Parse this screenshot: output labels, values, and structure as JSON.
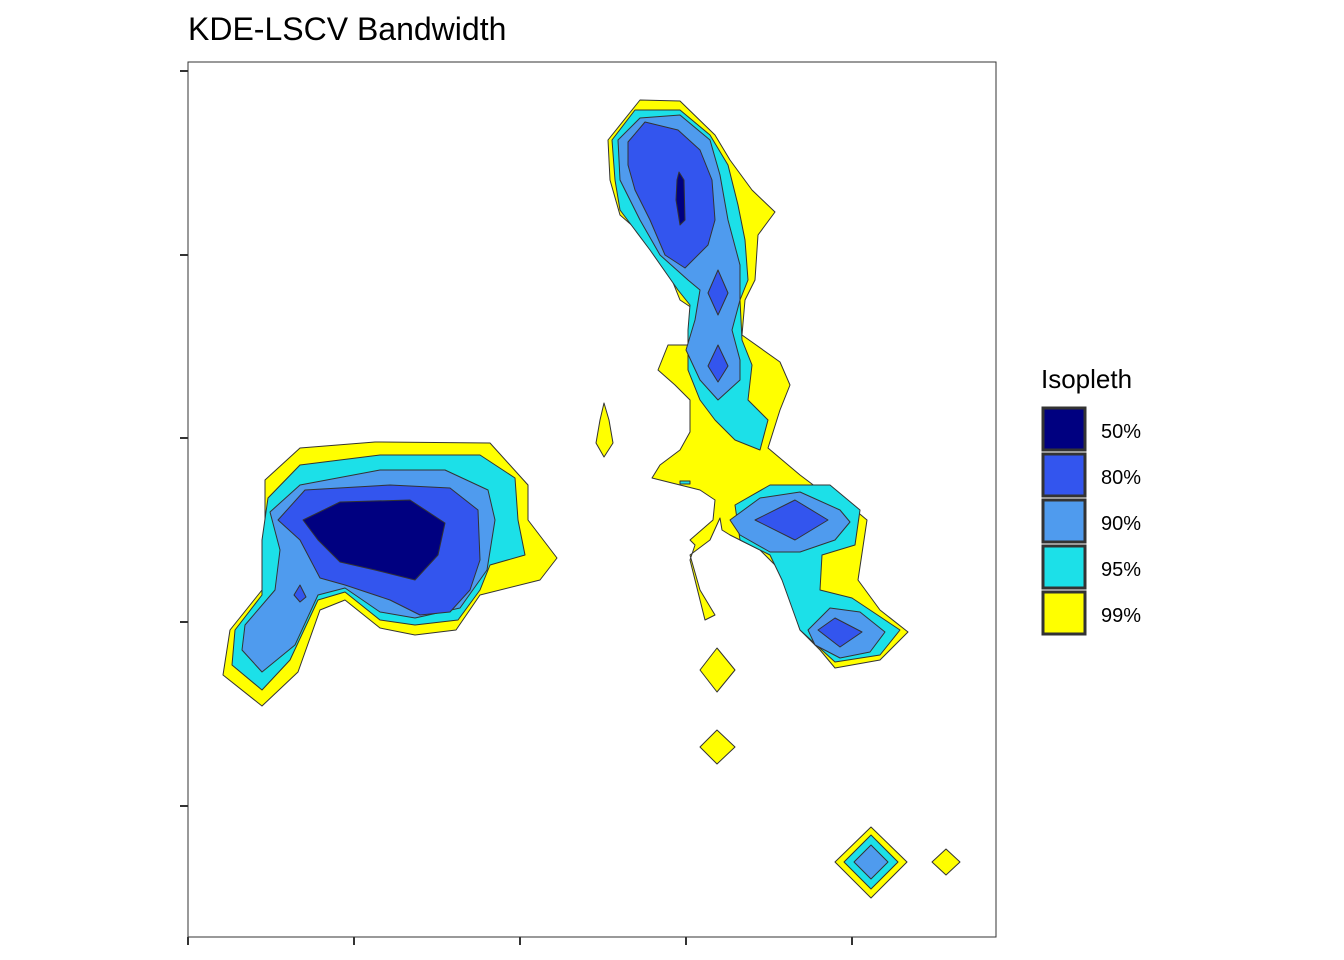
{
  "title": "KDE-LSCV Bandwidth",
  "colors": {
    "iso50": "#000080",
    "iso80": "#3355EE",
    "iso90": "#4F9BEE",
    "iso95": "#1CE0E8",
    "iso99": "#FFFF00"
  },
  "legend": {
    "title": "Isopleth",
    "items": [
      {
        "label": "50%",
        "color": "#000080"
      },
      {
        "label": "80%",
        "color": "#3355EE"
      },
      {
        "label": "90%",
        "color": "#4F9BEE"
      },
      {
        "label": "95%",
        "color": "#1CE0E8"
      },
      {
        "label": "99%",
        "color": "#FFFF00"
      }
    ],
    "position": "right"
  },
  "chart_data": {
    "type": "contour",
    "title": "KDE-LSCV Bandwidth",
    "xlabel": "",
    "ylabel": "",
    "x_tick_labels": [],
    "y_tick_labels": [],
    "grid": false,
    "levels": [
      "50%",
      "80%",
      "90%",
      "95%",
      "99%"
    ],
    "series": [
      {
        "name": "99%",
        "color": "#FFFF00"
      },
      {
        "name": "95%",
        "color": "#1CE0E8"
      },
      {
        "name": "90%",
        "color": "#4F9BEE"
      },
      {
        "name": "80%",
        "color": "#3355EE"
      },
      {
        "name": "50%",
        "color": "#000080"
      }
    ]
  }
}
